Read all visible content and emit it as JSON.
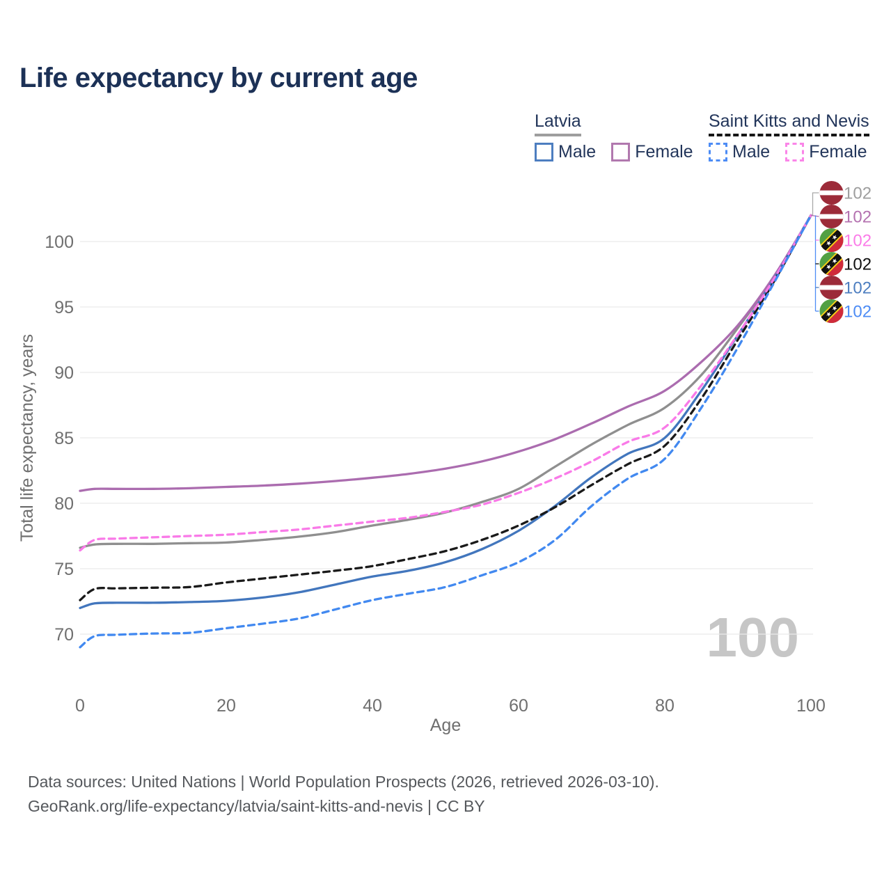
{
  "title": "Life expectancy by current age",
  "watermark": "100",
  "legend": {
    "groups": [
      {
        "country": "Latvia",
        "underline_color": "#9e9e9e",
        "underline_dashed": false,
        "items": [
          {
            "label": "Male",
            "color": "#4d7ec0",
            "dashed": false
          },
          {
            "label": "Female",
            "color": "#b178ae",
            "dashed": false
          }
        ]
      },
      {
        "country": "Saint Kitts and Nevis",
        "underline_color": "#161616",
        "underline_dashed": true,
        "items": [
          {
            "label": "Male",
            "color": "#4d8cf5",
            "dashed": true
          },
          {
            "label": "Female",
            "color": "#fa85e8",
            "dashed": true
          }
        ]
      }
    ]
  },
  "chart_data": {
    "type": "line",
    "title": "Life expectancy by current age",
    "xlabel": "Age",
    "ylabel": "Total life expectancy, years",
    "xlim": [
      0,
      100
    ],
    "ylim": [
      68,
      103
    ],
    "x_ticks": [
      0,
      20,
      40,
      60,
      80,
      100
    ],
    "y_ticks": [
      70,
      75,
      80,
      85,
      90,
      95,
      100
    ],
    "grid": "horizontal",
    "legend_position": "top-right",
    "ages": [
      0,
      2,
      5,
      10,
      15,
      20,
      25,
      30,
      35,
      40,
      45,
      50,
      55,
      60,
      65,
      70,
      75,
      80,
      85,
      90,
      95,
      100
    ],
    "series": [
      {
        "name": "Latvia",
        "country": "lv",
        "color": "#8f8f8f",
        "dashed": false,
        "label_slot": 0,
        "end_label": {
          "value": "102",
          "color": "#9e9e9e"
        },
        "values": [
          76.6,
          76.85,
          76.9,
          76.9,
          76.95,
          77.0,
          77.2,
          77.45,
          77.8,
          78.3,
          78.75,
          79.3,
          80.1,
          81.1,
          82.8,
          84.5,
          86.0,
          87.3,
          89.8,
          93.4,
          97.3,
          102
        ]
      },
      {
        "name": "Latvia Female",
        "country": "lv",
        "color": "#ab6caf",
        "dashed": false,
        "label_slot": 1,
        "end_label": {
          "value": "102",
          "color": "#b472b0"
        },
        "values": [
          80.95,
          81.1,
          81.1,
          81.1,
          81.15,
          81.25,
          81.35,
          81.5,
          81.7,
          81.95,
          82.25,
          82.65,
          83.2,
          83.95,
          84.9,
          86.1,
          87.4,
          88.6,
          90.8,
          93.6,
          97.4,
          102
        ]
      },
      {
        "name": "Latvia Male",
        "country": "lv",
        "color": "#4276bd",
        "dashed": false,
        "label_slot": 4,
        "end_label": {
          "value": "102",
          "color": "#4d7ec0"
        },
        "values": [
          72.0,
          72.35,
          72.4,
          72.4,
          72.45,
          72.55,
          72.8,
          73.2,
          73.8,
          74.4,
          74.85,
          75.5,
          76.5,
          77.9,
          79.8,
          82.0,
          83.8,
          85.0,
          88.6,
          92.85,
          97.2,
          102
        ]
      },
      {
        "name": "Saint Kitts and Nevis",
        "country": "kn",
        "color": "#1a1a1a",
        "dashed": true,
        "label_slot": 3,
        "end_label": {
          "value": "102",
          "color": "#111111"
        },
        "values": [
          72.6,
          73.45,
          73.5,
          73.55,
          73.6,
          73.95,
          74.25,
          74.55,
          74.85,
          75.2,
          75.75,
          76.35,
          77.2,
          78.3,
          79.7,
          81.4,
          83.0,
          84.4,
          88.0,
          92.5,
          97.0,
          102
        ]
      },
      {
        "name": "Saint Kitts and Nevis Female",
        "country": "kn",
        "color": "#f97ae8",
        "dashed": true,
        "label_slot": 2,
        "end_label": {
          "value": "102",
          "color": "#fb7ce8"
        },
        "values": [
          76.4,
          77.2,
          77.3,
          77.4,
          77.5,
          77.6,
          77.8,
          78.0,
          78.3,
          78.6,
          78.9,
          79.35,
          79.9,
          80.8,
          81.9,
          83.2,
          84.7,
          85.8,
          89.0,
          92.9,
          97.2,
          102
        ]
      },
      {
        "name": "Saint Kitts and Nevis Male",
        "country": "kn",
        "color": "#4289f0",
        "dashed": true,
        "label_slot": 5,
        "end_label": {
          "value": "102",
          "color": "#4d8cf5"
        },
        "values": [
          69.0,
          69.85,
          69.95,
          70.05,
          70.1,
          70.45,
          70.8,
          71.2,
          71.9,
          72.6,
          73.1,
          73.6,
          74.5,
          75.5,
          77.2,
          79.8,
          81.9,
          83.4,
          87.3,
          91.9,
          96.9,
          102
        ]
      }
    ]
  },
  "footer": {
    "line1": "Data sources: United Nations | World Population Prospects (2026, retrieved 2026-03-10).",
    "line2": "GeoRank.org/life-expectancy/latvia/saint-kitts-and-nevis | CC BY"
  }
}
